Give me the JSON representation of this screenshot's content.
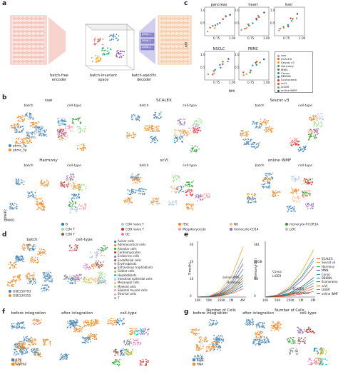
{
  "panel_letters": {
    "a": "a",
    "b": "b",
    "c": "c",
    "d": "d",
    "e": "e",
    "f": "f",
    "g": "g"
  },
  "panel_a": {
    "encoder": "batch-free\nencoder",
    "latent": "batch-invariant\nspace",
    "decoder": "batch-specific\ndecoder",
    "decoder_boxes": [
      "DSBN-1",
      "DSBN-2",
      "DSBN-3"
    ]
  },
  "panel_b": {
    "methods": [
      "raw",
      "SCALEX",
      "Seurat v3",
      "Harmony",
      "scVI",
      "online iNMF"
    ],
    "sub_labels": [
      "batch",
      "cell-type"
    ],
    "batch_legend": [
      "pbmc_3p",
      "pbmc_5p"
    ],
    "batch_colors": [
      "#4a87b8",
      "#f28c28"
    ],
    "celltype_legend": [
      {
        "label": "B",
        "color": "#1f77b4"
      },
      {
        "label": "CD4 naive T",
        "color": "#aec7e8"
      },
      {
        "label": "HSC",
        "color": "#ff7f0e"
      },
      {
        "label": "NK",
        "color": "#ffbb78"
      },
      {
        "label": "monocyte-FCGR3A",
        "color": "#2ca02c"
      },
      {
        "label": "CD4 T",
        "color": "#98df8a"
      },
      {
        "label": "CD8 naive T",
        "color": "#d62728"
      },
      {
        "label": "Megakaryocyte",
        "color": "#ff9896"
      },
      {
        "label": "monocyte-CD14",
        "color": "#9467bd"
      },
      {
        "label": "pDC",
        "color": "#c5b0d5"
      },
      {
        "label": "CD8 T",
        "color": "#8c564b"
      },
      {
        "label": "DC",
        "color": "#e377c2"
      }
    ],
    "umap_axis": [
      "UMAP1",
      "UMAP2"
    ]
  },
  "panel_c": {
    "subplots": [
      "pancreas",
      "heart",
      "liver",
      "NSCLC",
      "PBMC"
    ],
    "ylabel": "ARI",
    "xlabel": "NMI",
    "xticks": [
      "0.75",
      "1.00"
    ],
    "yticks": [
      "0.5",
      "1.0"
    ],
    "legend": [
      {
        "label": "raw",
        "color": "#999999"
      },
      {
        "label": "SCALEX",
        "color": "#e84c3d"
      },
      {
        "label": "Seurat v3",
        "color": "#f39c12"
      },
      {
        "label": "Harmony",
        "color": "#27ae60"
      },
      {
        "label": "MNN",
        "color": "#8e44ad"
      },
      {
        "label": "Conos",
        "color": "#16a085"
      },
      {
        "label": "BBKNN",
        "color": "#2980b9"
      },
      {
        "label": "Scanorama",
        "color": "#c0392b"
      },
      {
        "label": "scVI",
        "color": "#d35400"
      },
      {
        "label": "LIGER",
        "color": "#7f8c8d"
      },
      {
        "label": "online iNMF",
        "color": "#34495e"
      }
    ]
  },
  "panel_d": {
    "sub_labels": [
      "batch",
      "cell-type"
    ],
    "batch_legend": [
      "GSE156793",
      "GSE134355"
    ],
    "celltypes": [
      "Acinar cells",
      "Adrenocortical cells",
      "Alveolar cells",
      "Cardiomyocytes",
      "Endocrine cells",
      "Endothelial cells",
      "Erythroblasts",
      "Extravillous trophoblasts",
      "Goblet cells",
      "Hepatoblasts",
      "Intestinal epithelial cells",
      "Mesangial cells",
      "Myeloid cells",
      "Skeletal muscle cells",
      "Stromal cells",
      "T"
    ]
  },
  "panel_e": {
    "time_ylabel": "Time(h)",
    "mem_ylabel": "Memory(GB)",
    "xlabel": "Number of Cells",
    "xticks": [
      "10K",
      "50K",
      "250K",
      "1M",
      "4M"
    ],
    "time_yticks": [
      "0",
      "10",
      "20",
      "30"
    ],
    "mem_yticks": [
      "0",
      "GB",
      "64GB",
      "381"
    ],
    "annot_time": [
      "online iNMF",
      "Harmony"
    ],
    "annot_mem": [
      "Conos",
      "LIGER",
      "SCALEX",
      "Scanorama"
    ],
    "legend": [
      {
        "label": "SCALEX",
        "color": "#e84c3d"
      },
      {
        "label": "Seurat v3",
        "color": "#f39c12"
      },
      {
        "label": "Harmony",
        "color": "#27ae60"
      },
      {
        "label": "MNN",
        "color": "#8e44ad"
      },
      {
        "label": "Conos",
        "color": "#16a085"
      },
      {
        "label": "BBKNN",
        "color": "#2980b9"
      },
      {
        "label": "Scanorama",
        "color": "#c0392b"
      },
      {
        "label": "scVI",
        "color": "#d35400"
      },
      {
        "label": "LIGER",
        "color": "#7f8c8d"
      },
      {
        "label": "online iNMF",
        "color": "#34495e"
      }
    ]
  },
  "panel_f": {
    "titles": [
      "before integration",
      "after integration",
      "cell-type"
    ],
    "legend": [
      "10X",
      "snATAC"
    ]
  },
  "panel_g": {
    "titles": [
      "before integration",
      "after integration",
      "cell-type"
    ],
    "legend": [
      "ATAC",
      "RNA"
    ]
  }
}
